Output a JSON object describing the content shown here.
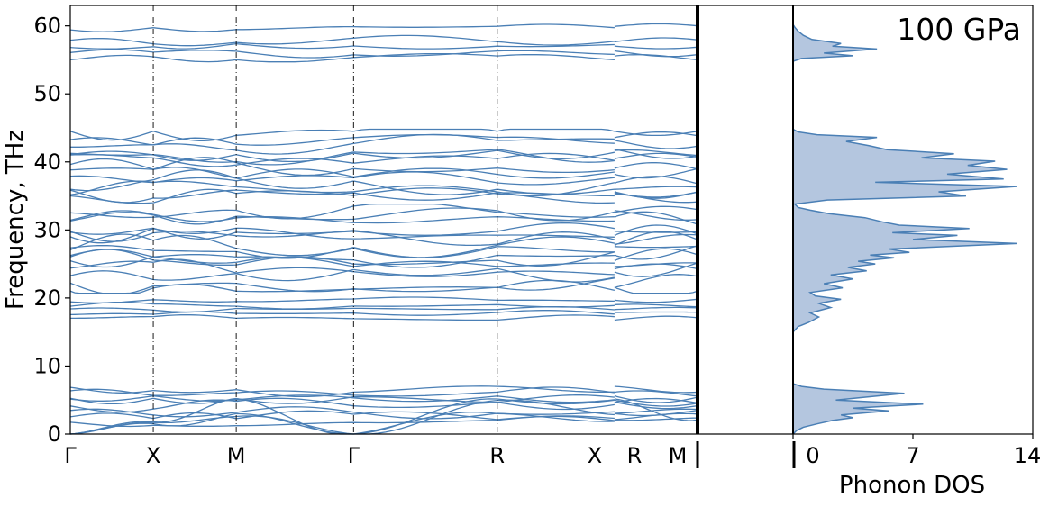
{
  "chart_data": [
    {
      "type": "line",
      "ylabel": "Frequency, THz",
      "ylim": [
        0,
        63
      ],
      "yticks": [
        0,
        10,
        20,
        30,
        40,
        50,
        60
      ],
      "high_symmetry_points": [
        {
          "label": "Γ",
          "x": 0
        },
        {
          "label": "X",
          "x": 0.5
        },
        {
          "label": "M",
          "x": 1.0
        },
        {
          "label": "Γ",
          "x": 1.707
        },
        {
          "label": "R",
          "x": 2.573
        },
        {
          "label": "X",
          "x": 3.28
        },
        {
          "label": "R",
          "x": 3.28
        },
        {
          "label": "M",
          "x": 3.78
        }
      ],
      "segments": [
        {
          "from": "Γ",
          "to": "X",
          "x_range": [
            0,
            0.5
          ]
        },
        {
          "from": "X",
          "to": "M",
          "x_range": [
            0.5,
            1.0
          ]
        },
        {
          "from": "M",
          "to": "Γ",
          "x_range": [
            1.0,
            1.707
          ]
        },
        {
          "from": "Γ",
          "to": "R",
          "x_range": [
            1.707,
            2.573
          ]
        },
        {
          "from": "R",
          "to": "X",
          "x_range": [
            2.573,
            3.28
          ]
        },
        {
          "from": "R",
          "to": "M",
          "x_range": [
            3.28,
            3.78
          ]
        }
      ],
      "series_color": "#4a7fb5",
      "band_groups": [
        {
          "name_hint": "acoustic/low optical",
          "range": [
            0,
            7
          ],
          "endpoint_levels": [
            0,
            0,
            0,
            1.8,
            2.6,
            3.4,
            4.2,
            5.0,
            5.6,
            6.2,
            6.7
          ]
        },
        {
          "name_hint": "mid bands",
          "range": [
            16.5,
            20
          ],
          "endpoint_levels": [
            17.0,
            17.6,
            18.3,
            19.0,
            19.6
          ]
        },
        {
          "name_hint": "dense middle",
          "range": [
            21,
            33.5
          ],
          "endpoint_levels": [
            21.5,
            22.4,
            23.3,
            24.2,
            25.0,
            25.8,
            26.6,
            27.4,
            28.2,
            29.0,
            29.8,
            30.6,
            31.4,
            32.2,
            33.0
          ]
        },
        {
          "name_hint": "dense upper",
          "range": [
            34,
            44.5
          ],
          "endpoint_levels": [
            34.5,
            35.3,
            36.1,
            36.9,
            37.7,
            38.5,
            39.3,
            40.1,
            40.9,
            41.7,
            42.5,
            43.3,
            44.1
          ]
        },
        {
          "name_hint": "top",
          "range": [
            55,
            60
          ],
          "endpoint_levels": [
            55.2,
            56.1,
            57.0,
            57.8,
            59.8
          ]
        }
      ],
      "annotation": "100 GPa"
    },
    {
      "type": "area",
      "xlabel": "Phonon DOS",
      "xlim": [
        0,
        14
      ],
      "xticks": [
        0,
        7,
        14
      ],
      "ylim": [
        0,
        63
      ],
      "fill_color": "#b4c6df",
      "line_color": "#4a7fb5",
      "points": [
        [
          0,
          0
        ],
        [
          0.2,
          0.5
        ],
        [
          0.6,
          1.0
        ],
        [
          1.4,
          1.5
        ],
        [
          2.3,
          2.0
        ],
        [
          3.5,
          2.4
        ],
        [
          2.8,
          2.8
        ],
        [
          5.6,
          3.4
        ],
        [
          3.5,
          3.8
        ],
        [
          7.6,
          4.4
        ],
        [
          2.5,
          5.0
        ],
        [
          6.5,
          6.0
        ],
        [
          1.8,
          6.6
        ],
        [
          0.5,
          7.0
        ],
        [
          0,
          7.4
        ],
        [
          0,
          15.0
        ],
        [
          0.3,
          15.8
        ],
        [
          0.9,
          16.4
        ],
        [
          1.5,
          17.2
        ],
        [
          1.0,
          17.8
        ],
        [
          2.2,
          18.6
        ],
        [
          1.5,
          19.2
        ],
        [
          2.8,
          19.8
        ],
        [
          1.3,
          20.3
        ],
        [
          1.0,
          20.8
        ],
        [
          2.9,
          21.5
        ],
        [
          1.8,
          22.1
        ],
        [
          3.5,
          22.8
        ],
        [
          2.2,
          23.4
        ],
        [
          4.3,
          24.0
        ],
        [
          3.2,
          24.5
        ],
        [
          4.8,
          25.0
        ],
        [
          3.8,
          25.4
        ],
        [
          5.9,
          25.9
        ],
        [
          4.5,
          26.3
        ],
        [
          6.8,
          26.7
        ],
        [
          5.6,
          27.2
        ],
        [
          13.1,
          28.0
        ],
        [
          7.0,
          28.6
        ],
        [
          9.6,
          29.2
        ],
        [
          5.8,
          29.6
        ],
        [
          10.3,
          30.2
        ],
        [
          6.2,
          30.7
        ],
        [
          5.2,
          31.2
        ],
        [
          4.2,
          31.8
        ],
        [
          2.1,
          32.4
        ],
        [
          1.0,
          32.9
        ],
        [
          0.3,
          33.3
        ],
        [
          0.1,
          33.8
        ],
        [
          2.0,
          34.4
        ],
        [
          10.1,
          35.0
        ],
        [
          8.5,
          35.6
        ],
        [
          13.1,
          36.4
        ],
        [
          4.8,
          37.0
        ],
        [
          12.3,
          37.5
        ],
        [
          9.0,
          38.2
        ],
        [
          12.5,
          38.9
        ],
        [
          10.2,
          39.5
        ],
        [
          11.8,
          40.1
        ],
        [
          7.5,
          40.6
        ],
        [
          9.4,
          41.2
        ],
        [
          5.5,
          41.8
        ],
        [
          4.4,
          42.4
        ],
        [
          3.1,
          43.0
        ],
        [
          4.9,
          43.6
        ],
        [
          1.4,
          44.0
        ],
        [
          0.3,
          44.4
        ],
        [
          0,
          44.8
        ],
        [
          0,
          54.8
        ],
        [
          0.5,
          55.2
        ],
        [
          3.5,
          55.6
        ],
        [
          1.8,
          56.0
        ],
        [
          4.9,
          56.6
        ],
        [
          2.3,
          57.0
        ],
        [
          2.8,
          57.4
        ],
        [
          1.1,
          58.0
        ],
        [
          0.6,
          58.6
        ],
        [
          0.3,
          59.2
        ],
        [
          0.1,
          59.8
        ],
        [
          0,
          60.2
        ],
        [
          0,
          63
        ]
      ]
    }
  ],
  "labels": {
    "ylabel": "Frequency, THz",
    "xlabel_dos": "Phonon DOS",
    "pressure": "100 GPa"
  }
}
